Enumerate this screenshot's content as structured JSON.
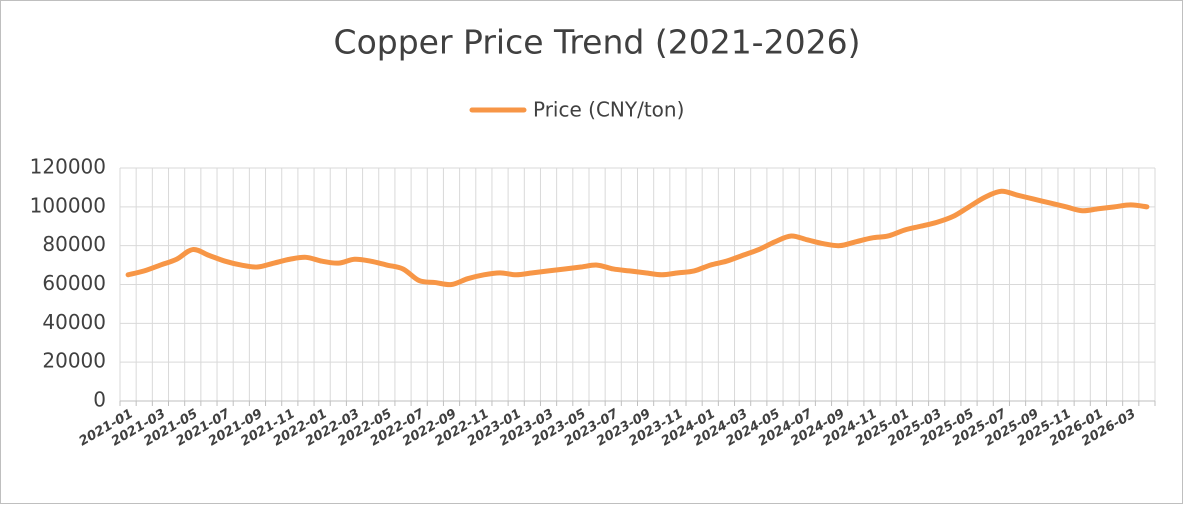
{
  "chart_data": {
    "type": "line",
    "title": "Copper Price Trend (2021-2026)",
    "categories": [
      "2021-01",
      null,
      "2021-03",
      null,
      "2021-05",
      null,
      "2021-07",
      null,
      "2021-09",
      null,
      "2021-11",
      null,
      "2022-01",
      null,
      "2022-03",
      null,
      "2022-05",
      null,
      "2022-07",
      null,
      "2022-09",
      null,
      "2022-11",
      null,
      "2023-01",
      null,
      "2023-03",
      null,
      "2023-05",
      null,
      "2023-07",
      null,
      "2023-09",
      null,
      "2023-11",
      null,
      "2024-01",
      null,
      "2024-03",
      null,
      "2024-05",
      null,
      "2024-07",
      null,
      "2024-09",
      null,
      "2024-11",
      null,
      "2025-01",
      null,
      "2025-03",
      null,
      "2025-05",
      null,
      "2025-07",
      null,
      "2025-09",
      null,
      "2025-11",
      null,
      "2026-01",
      null,
      "2026-03",
      null
    ],
    "series": [
      {
        "name": "Price (CNY/ton)",
        "color": "#f79646",
        "values": [
          65000,
          67000,
          70000,
          73000,
          78000,
          75000,
          72000,
          70000,
          69000,
          71000,
          73000,
          74000,
          72000,
          71000,
          73000,
          72000,
          70000,
          68000,
          62000,
          61000,
          60000,
          63000,
          65000,
          66000,
          65000,
          66000,
          67000,
          68000,
          69000,
          70000,
          68000,
          67000,
          66000,
          65000,
          66000,
          67000,
          70000,
          72000,
          75000,
          78000,
          82000,
          85000,
          83000,
          81000,
          80000,
          82000,
          84000,
          85000,
          88000,
          90000,
          92000,
          95000,
          100000,
          105000,
          108000,
          106000,
          104000,
          102000,
          100000,
          98000,
          99000,
          100000,
          101000,
          100000
        ]
      }
    ],
    "ylim": [
      0,
      120000
    ],
    "yticks": [
      0,
      20000,
      40000,
      60000,
      80000,
      100000,
      120000
    ],
    "grid": true,
    "legend": "top"
  }
}
